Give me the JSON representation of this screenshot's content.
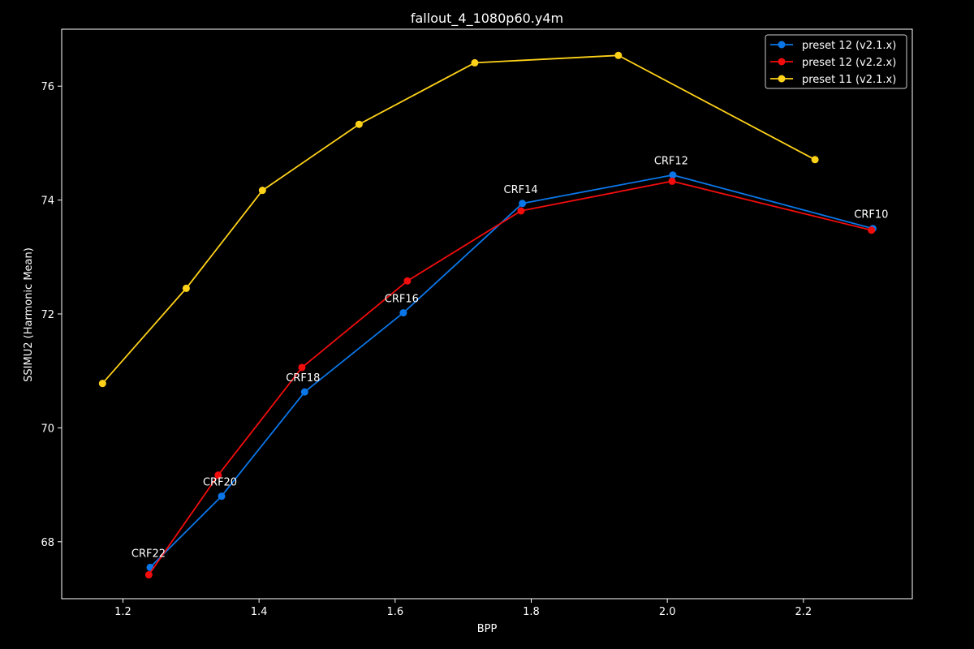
{
  "chart_data": {
    "type": "line",
    "title": "fallout_4_1080p60.y4m",
    "xlabel": "BPP",
    "ylabel": "SSIMU2 (Harmonic Mean)",
    "xlim": [
      1.11,
      2.36
    ],
    "ylim": [
      67.0,
      77.0
    ],
    "xticks": [
      1.2,
      1.4,
      1.6,
      1.8,
      2.0,
      2.2
    ],
    "yticks": [
      68,
      70,
      72,
      74,
      76
    ],
    "xtick_labels": [
      "1.2",
      "1.4",
      "1.6",
      "1.8",
      "2.0",
      "2.2"
    ],
    "ytick_labels": [
      "68",
      "70",
      "72",
      "74",
      "76"
    ],
    "grid": false,
    "legend_position": "top-right",
    "series": [
      {
        "name": "preset 12 (v2.1.x)",
        "color": "#0a76e8",
        "x": [
          1.24,
          1.345,
          1.467,
          1.612,
          1.787,
          2.008,
          2.302
        ],
        "y": [
          67.55,
          68.8,
          70.63,
          72.02,
          73.94,
          74.44,
          73.5
        ]
      },
      {
        "name": "preset 12 (v2.2.x)",
        "color": "#f20d0d",
        "x": [
          1.238,
          1.34,
          1.463,
          1.618,
          1.785,
          2.007,
          2.3
        ],
        "y": [
          67.42,
          69.17,
          71.06,
          72.58,
          73.81,
          74.33,
          73.47
        ]
      },
      {
        "name": "preset 11 (v2.1.x)",
        "color": "#ffd21a",
        "x": [
          1.17,
          1.293,
          1.405,
          1.547,
          1.717,
          1.928,
          2.217
        ],
        "y": [
          70.78,
          72.45,
          74.17,
          75.33,
          76.41,
          76.54,
          74.71
        ]
      }
    ],
    "annotations": [
      {
        "text": "CRF22",
        "x": 1.24,
        "y": 67.55
      },
      {
        "text": "CRF20",
        "x": 1.345,
        "y": 68.8
      },
      {
        "text": "CRF18",
        "x": 1.467,
        "y": 70.63
      },
      {
        "text": "CRF16",
        "x": 1.612,
        "y": 72.02
      },
      {
        "text": "CRF14",
        "x": 1.787,
        "y": 73.94
      },
      {
        "text": "CRF12",
        "x": 2.008,
        "y": 74.44
      },
      {
        "text": "CRF10",
        "x": 2.302,
        "y": 73.5
      }
    ]
  }
}
